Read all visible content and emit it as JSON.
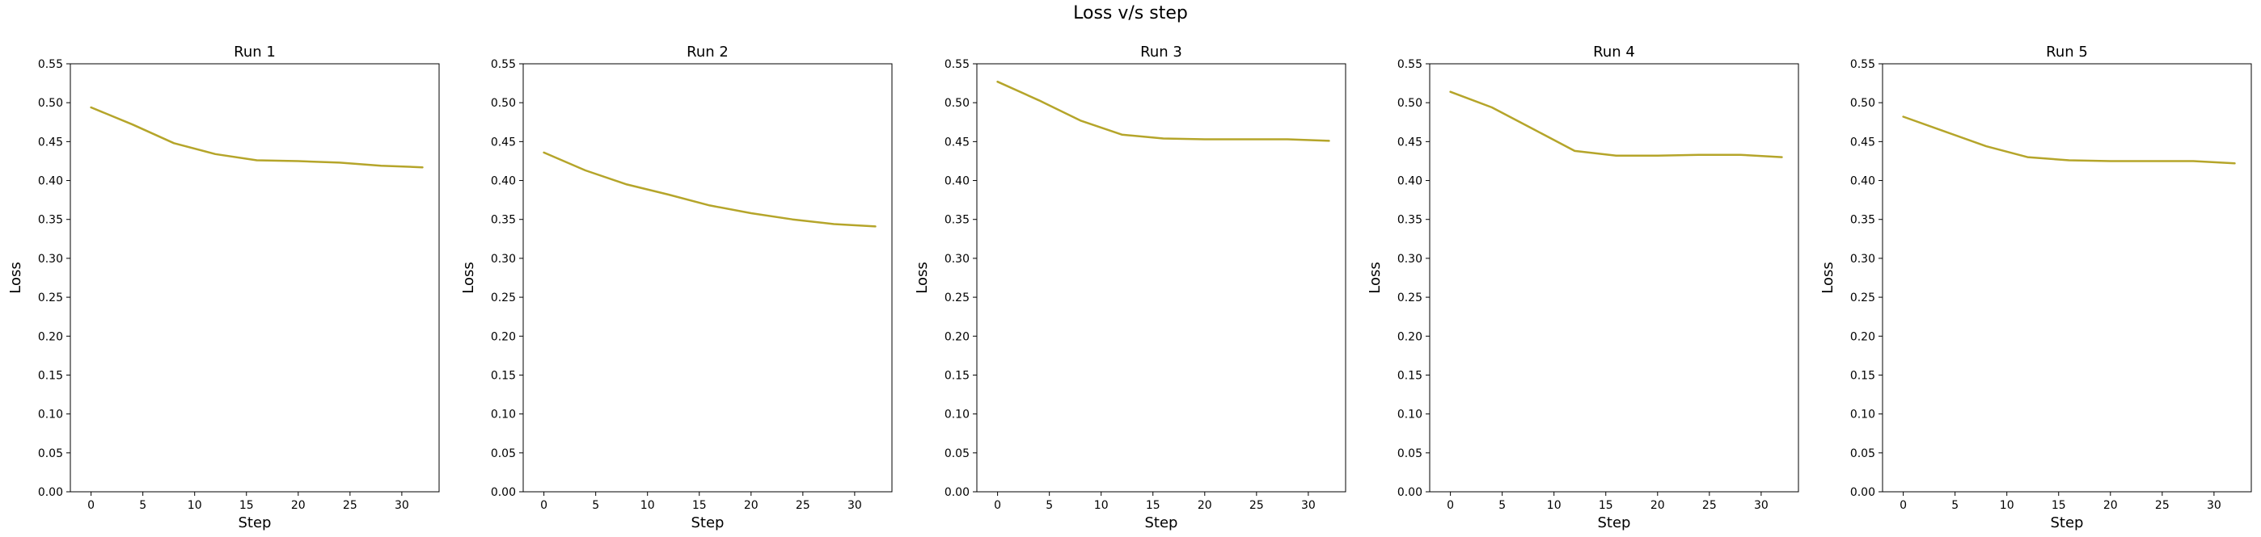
{
  "figure": {
    "title": "Loss v/s step"
  },
  "chart_data": [
    {
      "type": "line",
      "title": "Run 1",
      "xlabel": "Step",
      "ylabel": "Loss",
      "xlim": [
        -2,
        33.6
      ],
      "ylim": [
        0,
        0.55
      ],
      "xticks": [
        0,
        5,
        10,
        15,
        20,
        25,
        30
      ],
      "yticks": [
        0.0,
        0.05,
        0.1,
        0.15,
        0.2,
        0.25,
        0.3,
        0.35,
        0.4,
        0.45,
        0.5,
        0.55
      ],
      "series": [
        {
          "x": [
            0,
            4,
            8,
            12,
            16,
            20,
            24,
            28,
            32
          ],
          "y": [
            0.494,
            0.472,
            0.448,
            0.434,
            0.426,
            0.425,
            0.423,
            0.419,
            0.417
          ]
        }
      ],
      "color": "#b5a52a"
    },
    {
      "type": "line",
      "title": "Run 2",
      "xlabel": "Step",
      "ylabel": "Loss",
      "xlim": [
        -2,
        33.6
      ],
      "ylim": [
        0,
        0.55
      ],
      "xticks": [
        0,
        5,
        10,
        15,
        20,
        25,
        30
      ],
      "yticks": [
        0.0,
        0.05,
        0.1,
        0.15,
        0.2,
        0.25,
        0.3,
        0.35,
        0.4,
        0.45,
        0.5,
        0.55
      ],
      "series": [
        {
          "x": [
            0,
            4,
            8,
            12,
            16,
            20,
            24,
            28,
            32
          ],
          "y": [
            0.436,
            0.413,
            0.395,
            0.382,
            0.368,
            0.358,
            0.35,
            0.344,
            0.341
          ]
        }
      ],
      "color": "#b5a52a"
    },
    {
      "type": "line",
      "title": "Run 3",
      "xlabel": "Step",
      "ylabel": "Loss",
      "xlim": [
        -2,
        33.6
      ],
      "ylim": [
        0,
        0.55
      ],
      "xticks": [
        0,
        5,
        10,
        15,
        20,
        25,
        30
      ],
      "yticks": [
        0.0,
        0.05,
        0.1,
        0.15,
        0.2,
        0.25,
        0.3,
        0.35,
        0.4,
        0.45,
        0.5,
        0.55
      ],
      "series": [
        {
          "x": [
            0,
            4,
            8,
            12,
            16,
            20,
            24,
            28,
            32
          ],
          "y": [
            0.527,
            0.503,
            0.477,
            0.459,
            0.454,
            0.453,
            0.453,
            0.453,
            0.451
          ]
        }
      ],
      "color": "#b5a52a"
    },
    {
      "type": "line",
      "title": "Run 4",
      "xlabel": "Step",
      "ylabel": "Loss",
      "xlim": [
        -2,
        33.6
      ],
      "ylim": [
        0,
        0.55
      ],
      "xticks": [
        0,
        5,
        10,
        15,
        20,
        25,
        30
      ],
      "yticks": [
        0.0,
        0.05,
        0.1,
        0.15,
        0.2,
        0.25,
        0.3,
        0.35,
        0.4,
        0.45,
        0.5,
        0.55
      ],
      "series": [
        {
          "x": [
            0,
            4,
            8,
            12,
            16,
            20,
            24,
            28,
            32
          ],
          "y": [
            0.514,
            0.494,
            0.466,
            0.438,
            0.432,
            0.432,
            0.433,
            0.433,
            0.43
          ]
        }
      ],
      "color": "#b5a52a"
    },
    {
      "type": "line",
      "title": "Run 5",
      "xlabel": "Step",
      "ylabel": "Loss",
      "xlim": [
        -2,
        33.6
      ],
      "ylim": [
        0,
        0.55
      ],
      "xticks": [
        0,
        5,
        10,
        15,
        20,
        25,
        30
      ],
      "yticks": [
        0.0,
        0.05,
        0.1,
        0.15,
        0.2,
        0.25,
        0.3,
        0.35,
        0.4,
        0.45,
        0.5,
        0.55
      ],
      "series": [
        {
          "x": [
            0,
            4,
            8,
            12,
            16,
            20,
            24,
            28,
            32
          ],
          "y": [
            0.482,
            0.463,
            0.444,
            0.43,
            0.426,
            0.425,
            0.425,
            0.425,
            0.422
          ]
        }
      ],
      "color": "#b5a52a"
    }
  ]
}
